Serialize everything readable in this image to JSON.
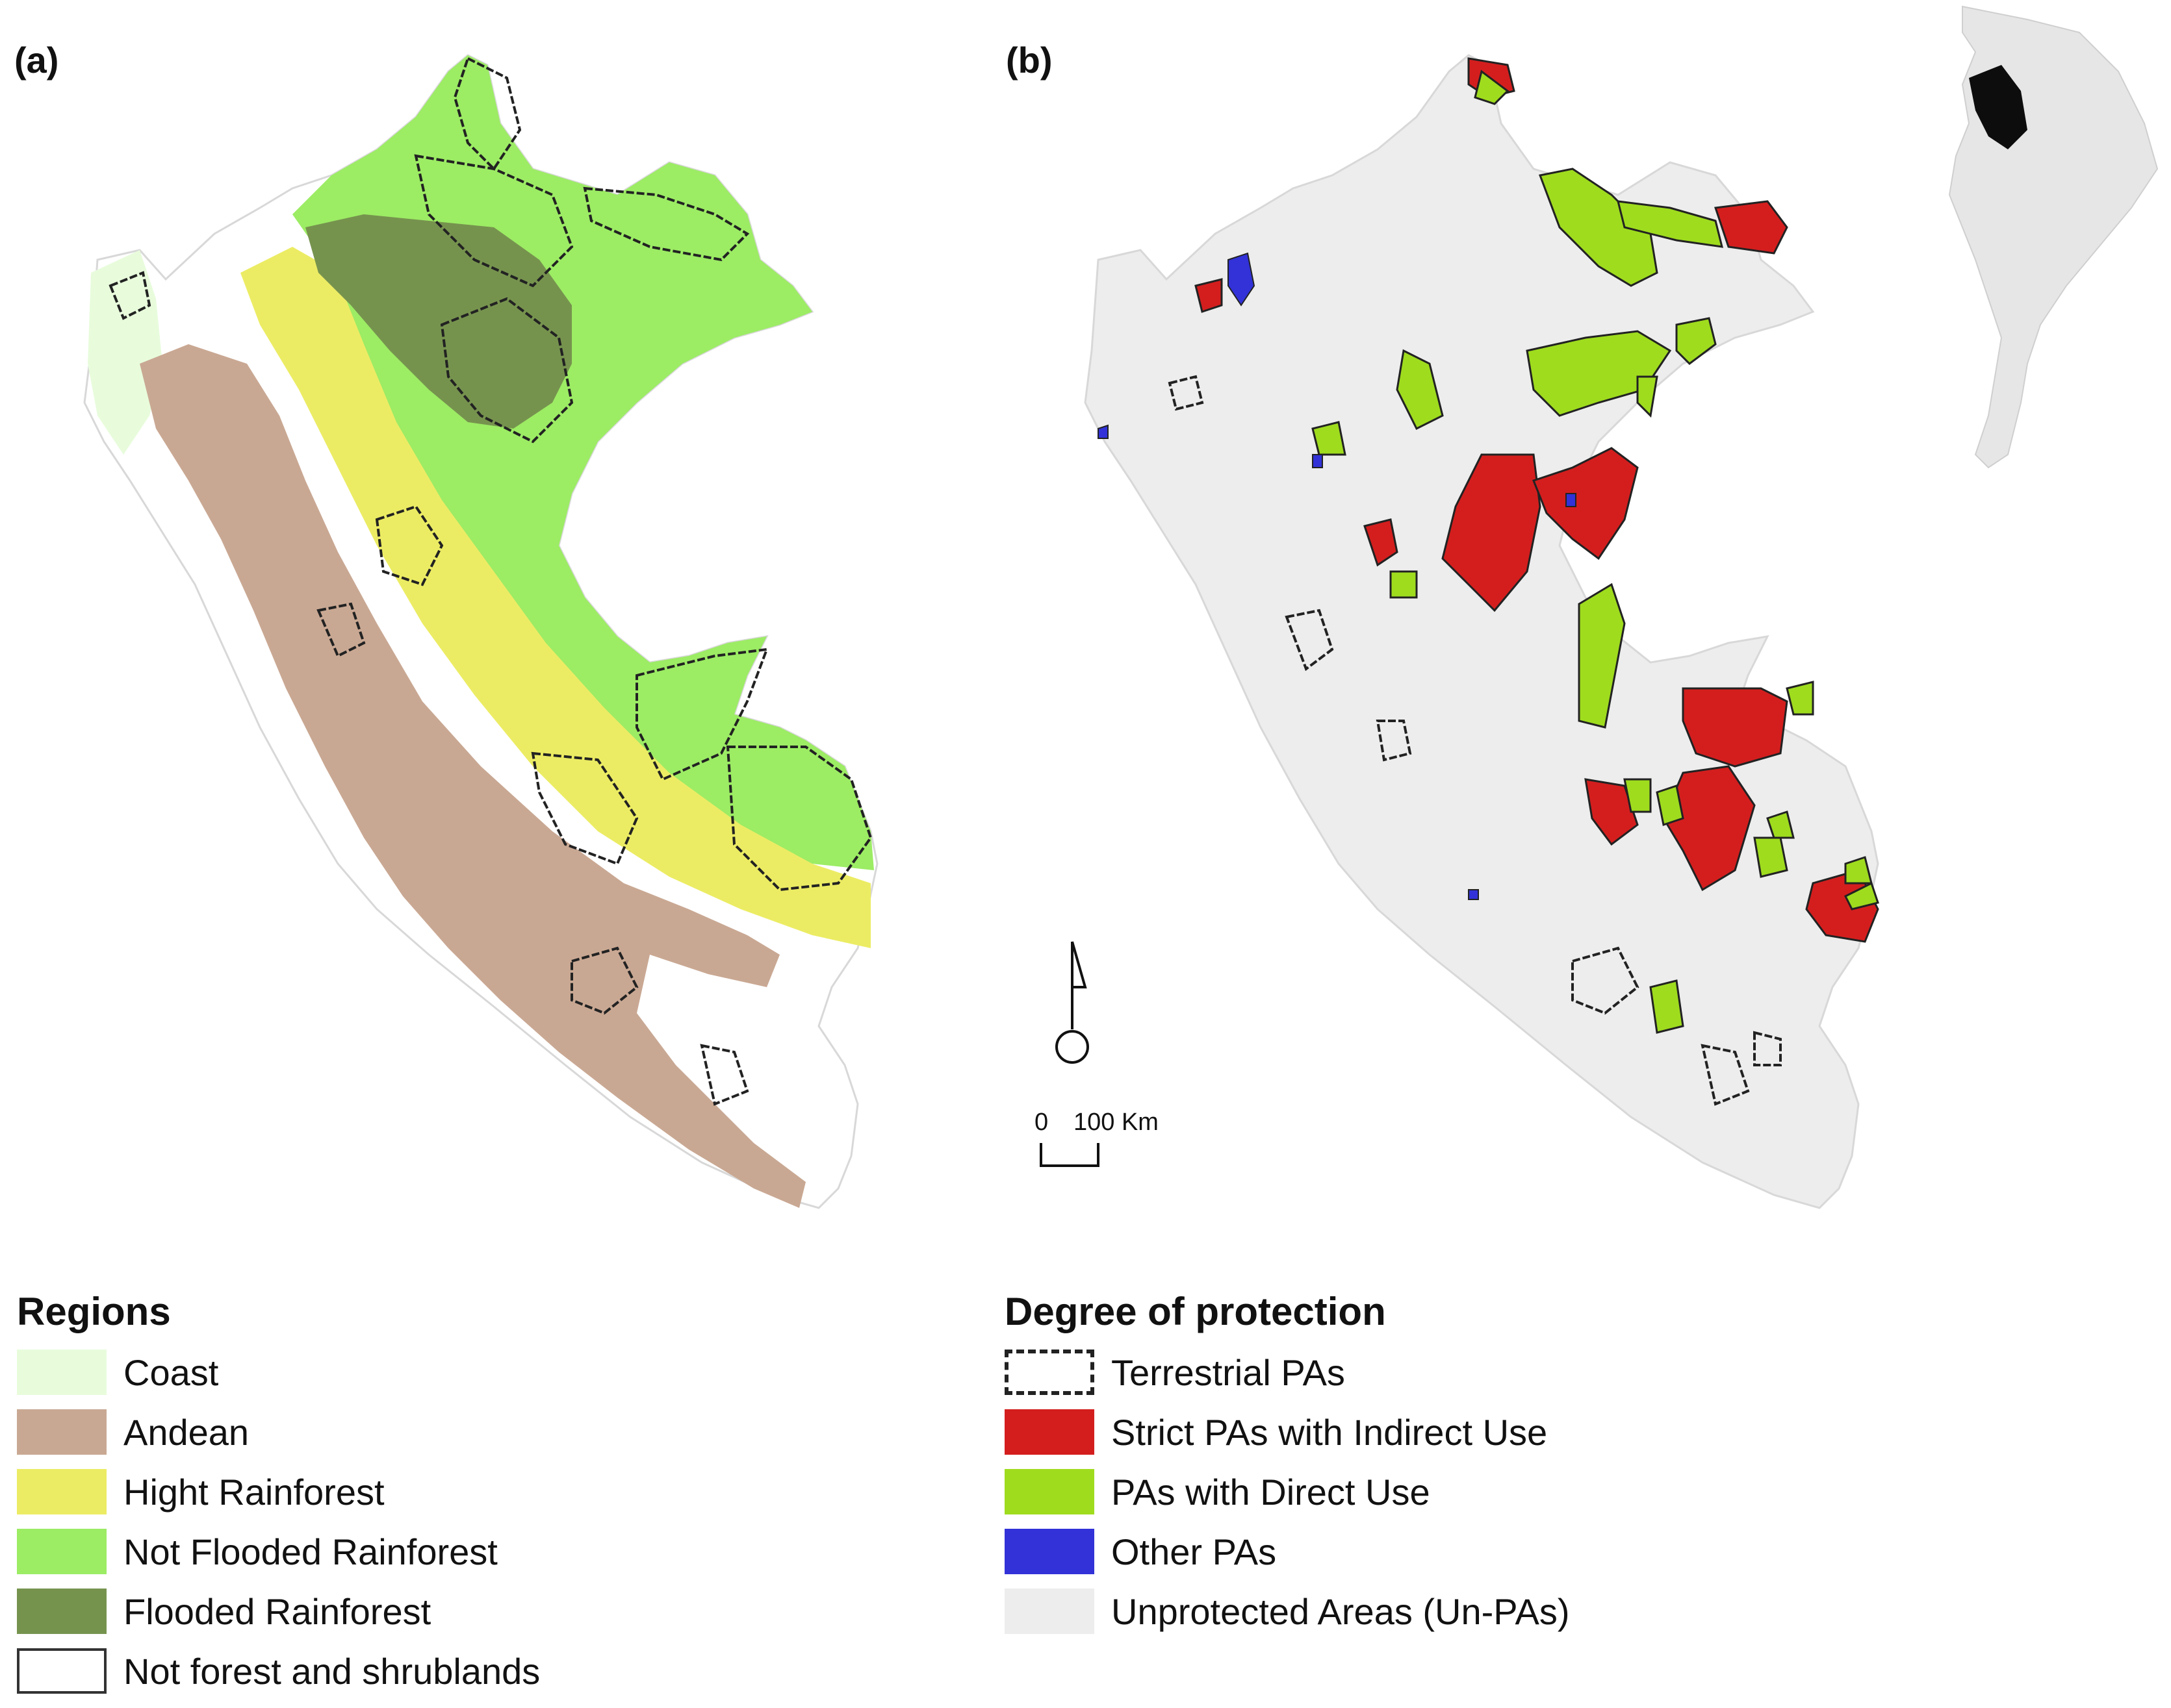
{
  "panels": [
    {
      "label": "(a)"
    },
    {
      "label": "(b)"
    }
  ],
  "scale_bar": {
    "zero": "0",
    "distance": "100 Km"
  },
  "legend_regions": {
    "title": "Regions",
    "items": [
      {
        "label": "Coast",
        "color": "#e8fcdc"
      },
      {
        "label": "Andean",
        "color": "#c9a893"
      },
      {
        "label": "Hight Rainforest",
        "color": "#ecec64"
      },
      {
        "label": "Not Flooded Rainforest",
        "color": "#9cec64"
      },
      {
        "label": "Flooded Rainforest",
        "color": "#76934e"
      },
      {
        "label": "Not forest and shrublands",
        "color": "#ffffff"
      }
    ]
  },
  "legend_protection": {
    "title": "Degree of protection",
    "items": [
      {
        "label": "Terrestrial PAs",
        "color": "#ffffff"
      },
      {
        "label": "Strict PAs with Indirect Use",
        "color": "#d41e1e"
      },
      {
        "label": "PAs with Direct Use",
        "color": "#9fdc1e"
      },
      {
        "label": "Other PAs",
        "color": "#3232d8"
      },
      {
        "label": "Unprotected Areas (Un-PAs)",
        "color": "#ededed"
      }
    ]
  }
}
